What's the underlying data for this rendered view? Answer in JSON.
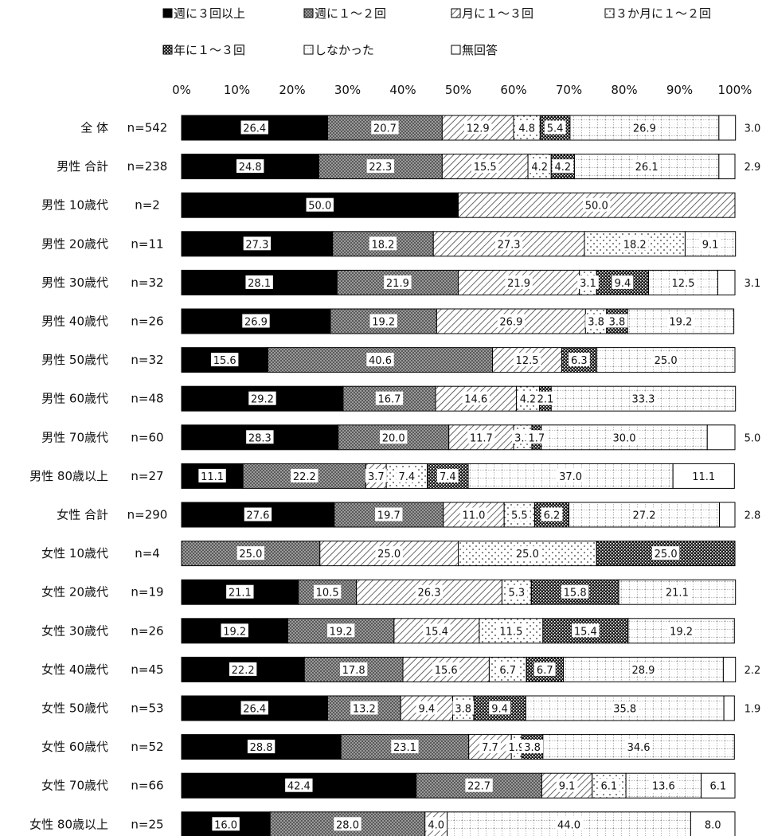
{
  "chart_data": {
    "type": "bar",
    "orientation": "horizontal",
    "stacked": "percent",
    "xlim": [
      0,
      100
    ],
    "x_ticks": [
      "0%",
      "10%",
      "20%",
      "30%",
      "40%",
      "50%",
      "60%",
      "70%",
      "80%",
      "90%",
      "100%"
    ],
    "legend_position": "top",
    "grid": false,
    "categories": [
      {
        "label": "全 体",
        "n": "n=542"
      },
      {
        "label": "男性 合計",
        "n": "n=238"
      },
      {
        "label": "男性 10歳代",
        "n": "n=2"
      },
      {
        "label": "男性 20歳代",
        "n": "n=11"
      },
      {
        "label": "男性 30歳代",
        "n": "n=32"
      },
      {
        "label": "男性 40歳代",
        "n": "n=26"
      },
      {
        "label": "男性 50歳代",
        "n": "n=32"
      },
      {
        "label": "男性 60歳代",
        "n": "n=48"
      },
      {
        "label": "男性 70歳代",
        "n": "n=60"
      },
      {
        "label": "男性 80歳以上",
        "n": "n=27"
      },
      {
        "label": "女性 合計",
        "n": "n=290"
      },
      {
        "label": "女性 10歳代",
        "n": "n=4"
      },
      {
        "label": "女性 20歳代",
        "n": "n=19"
      },
      {
        "label": "女性 30歳代",
        "n": "n=26"
      },
      {
        "label": "女性 40歳代",
        "n": "n=45"
      },
      {
        "label": "女性 50歳代",
        "n": "n=53"
      },
      {
        "label": "女性 60歳代",
        "n": "n=52"
      },
      {
        "label": "女性 70歳代",
        "n": "n=66"
      },
      {
        "label": "女性 80歳以上",
        "n": "n=25"
      }
    ],
    "series": [
      {
        "name": "週に３回以上",
        "pattern": "solid",
        "values": [
          26.4,
          24.8,
          50.0,
          27.3,
          28.1,
          26.9,
          15.6,
          29.2,
          28.3,
          11.1,
          27.6,
          0,
          21.1,
          19.2,
          22.2,
          26.4,
          28.8,
          42.4,
          16.0
        ]
      },
      {
        "name": "週に１～２回",
        "pattern": "dense",
        "values": [
          20.7,
          22.3,
          0,
          18.2,
          21.9,
          19.2,
          40.6,
          16.7,
          20.0,
          22.2,
          19.7,
          25.0,
          10.5,
          19.2,
          17.8,
          13.2,
          23.1,
          22.7,
          28.0
        ]
      },
      {
        "name": "月に１～３回",
        "pattern": "hatch",
        "values": [
          12.9,
          15.5,
          50.0,
          27.3,
          21.9,
          26.9,
          12.5,
          14.6,
          11.7,
          3.7,
          11.0,
          25.0,
          26.3,
          15.4,
          15.6,
          9.4,
          7.7,
          9.1,
          4.0
        ]
      },
      {
        "name": "３か月に１～２回",
        "pattern": "dots",
        "values": [
          4.8,
          4.2,
          0,
          18.2,
          3.1,
          3.8,
          0,
          4.2,
          3.3,
          7.4,
          5.5,
          25.0,
          5.3,
          11.5,
          6.7,
          3.8,
          1.9,
          6.1,
          0
        ]
      },
      {
        "name": "年に１～３回",
        "pattern": "checker",
        "values": [
          5.4,
          4.2,
          0,
          0,
          9.4,
          3.8,
          6.3,
          2.1,
          1.7,
          7.4,
          6.2,
          25.0,
          15.8,
          15.4,
          6.7,
          9.4,
          3.8,
          0,
          0
        ]
      },
      {
        "name": "しなかった",
        "pattern": "grid",
        "values": [
          26.9,
          26.1,
          0,
          9.1,
          12.5,
          19.2,
          25.0,
          33.3,
          30.0,
          37.0,
          27.2,
          0,
          21.1,
          19.2,
          28.9,
          35.8,
          34.6,
          13.6,
          44.0
        ]
      },
      {
        "name": "無回答",
        "pattern": "white",
        "values": [
          3.0,
          2.9,
          0,
          0,
          3.1,
          0,
          0,
          0,
          5.0,
          11.1,
          2.8,
          0,
          0,
          0,
          2.2,
          1.9,
          0,
          6.1,
          8.0
        ]
      }
    ]
  }
}
